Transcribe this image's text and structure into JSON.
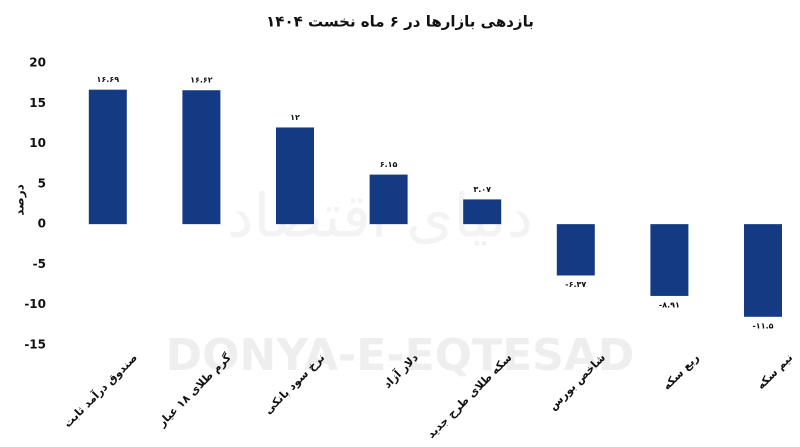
{
  "chart_data": {
    "type": "bar",
    "title": "بازدهی بازارها در ۶ ماه نخست ۱۴۰۴",
    "y_label": "درصد",
    "watermark": "DONYA-E-EQTESAD",
    "watermark_fa": "دنیای اقتصاد",
    "categories": [
      "صندوق درآمد ثابت",
      "گرم طلای ۱۸ عیار",
      "نرخ سود بانکی",
      "دلار آزاد",
      "سکه طلای طرح جدید",
      "شاخص بورس",
      "ربع سکه",
      "نیم سکه"
    ],
    "values": [
      16.69,
      16.62,
      12,
      6.15,
      3.07,
      -6.37,
      -8.91,
      -11.5
    ],
    "value_labels": [
      "۱۶.۶۹",
      "۱۶.۶۲",
      "۱۲",
      "۶.۱۵",
      "۳.۰۷",
      "-۶.۳۷",
      "-۸.۹۱",
      "-۱۱.۵"
    ],
    "color": "#143a83",
    "ylim": [
      -15,
      20
    ],
    "yticks": [
      -15,
      -10,
      -5,
      0,
      5,
      10,
      15,
      20
    ],
    "grid": false
  }
}
